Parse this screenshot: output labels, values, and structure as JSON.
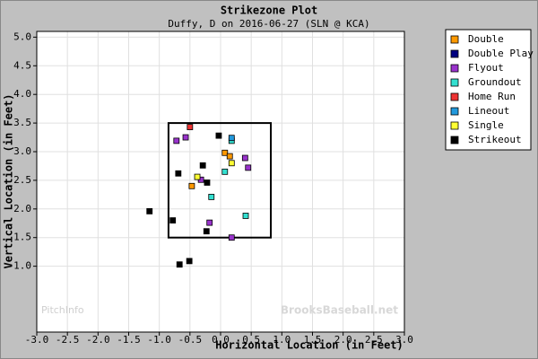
{
  "chart_data": {
    "type": "scatter",
    "title": "Strikezone Plot",
    "subtitle": "Duffy, D on 2016-06-27 (SLN @ KCA)",
    "x_label": "Horizontal Location (in Feet)",
    "y_label": "Vertical Location (in Feet)",
    "annotations": [
      "PitchInfo",
      "BrooksBaseball.net"
    ],
    "xlim": [
      -3,
      3
    ],
    "ylim": [
      -0.15,
      5.1
    ],
    "xticks": [
      {
        "value": -3,
        "label": "-3.0"
      },
      {
        "value": -2.5,
        "label": "-2.5"
      },
      {
        "value": -2,
        "label": "-2.0"
      },
      {
        "value": -1.5,
        "label": "-1.5"
      },
      {
        "value": -1,
        "label": "-1.0"
      },
      {
        "value": -0.5,
        "label": "-0.5"
      },
      {
        "value": 0,
        "label": "0.0"
      },
      {
        "value": 0.5,
        "label": "0.5"
      },
      {
        "value": 1,
        "label": "1.0"
      },
      {
        "value": 1.5,
        "label": "1.5"
      },
      {
        "value": 2,
        "label": "2.0"
      },
      {
        "value": 2.5,
        "label": "2.5"
      },
      {
        "value": 3,
        "label": "3.0"
      }
    ],
    "yticks": [
      {
        "value": 1,
        "label": "1.0"
      },
      {
        "value": 1.5,
        "label": "1.5"
      },
      {
        "value": 2,
        "label": "2.0"
      },
      {
        "value": 2.5,
        "label": "2.5"
      },
      {
        "value": 3,
        "label": "3.0"
      },
      {
        "value": 3.5,
        "label": "3.5"
      },
      {
        "value": 4,
        "label": "4.0"
      },
      {
        "value": 4.5,
        "label": "4.5"
      },
      {
        "value": 5,
        "label": "5.0"
      }
    ],
    "grid": true,
    "legend": "right",
    "strike_zone": {
      "x": [
        -0.85,
        0.82
      ],
      "y": [
        1.5,
        3.5
      ]
    },
    "series": [
      {
        "name": "Double",
        "color": "#ff9900",
        "x": [
          0.07,
          0.15,
          -0.47
        ],
        "values": [
          2.98,
          2.92,
          2.4
        ]
      },
      {
        "name": "Double Play",
        "color": "#000080",
        "x": [],
        "values": []
      },
      {
        "name": "Flyout",
        "color": "#9933cc",
        "x": [
          -0.72,
          -0.57,
          0.4,
          0.45,
          -0.32,
          -0.18,
          0.18
        ],
        "values": [
          3.19,
          3.25,
          2.89,
          2.72,
          2.51,
          1.76,
          1.5
        ]
      },
      {
        "name": "Groundout",
        "color": "#33e0d0",
        "x": [
          0.18,
          0.07,
          -0.15,
          0.41
        ],
        "values": [
          3.19,
          2.65,
          2.21,
          1.88
        ]
      },
      {
        "name": "Home Run",
        "color": "#ee3333",
        "x": [
          -0.5
        ],
        "values": [
          3.43
        ]
      },
      {
        "name": "Lineout",
        "color": "#2299dd",
        "x": [
          0.18
        ],
        "values": [
          3.24
        ]
      },
      {
        "name": "Single",
        "color": "#ffff33",
        "x": [
          0.18,
          -0.38
        ],
        "values": [
          2.8,
          2.56
        ]
      },
      {
        "name": "Strikeout",
        "color": "#000000",
        "x": [
          -0.03,
          -0.29,
          -0.69,
          -0.22,
          -1.16,
          -0.78,
          -0.23,
          -0.51,
          -0.67
        ],
        "values": [
          3.28,
          2.76,
          2.62,
          2.46,
          1.96,
          1.8,
          1.61,
          1.09,
          1.03
        ]
      }
    ]
  }
}
